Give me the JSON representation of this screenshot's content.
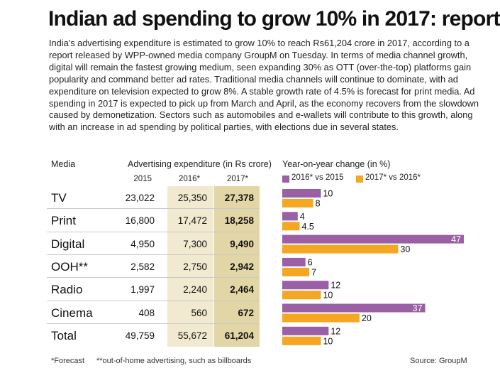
{
  "title": "Indian ad spending to grow 10% in 2017: report",
  "body": "India's advertising expenditure is estimated to grow 10% to reach Rs61,204 crore in 2017, according to a report released by WPP-owned media company GroupM on Tuesday. In terms of media channel growth, digital will remain the fastest growing medium, seen expanding 30% as OTT (over-the-top) platforms gain popularity and command better ad rates. Traditional media channels will continue to dominate, with ad expenditure on television expected to grow 8%. A stable growth rate of 4.5% is forecast for print media. Ad spending in 2017 is expected to pick up from March and April, as the economy recovers from the slowdown caused by demonetization. Sectors such as automobiles and e-wallets will contribute to this growth, along with an increase in ad spending by political parties, with elections due in several states.",
  "table": {
    "media_header": "Media",
    "spend_header": "Advertising expenditure (in Rs crore)",
    "yoy_header": "Year-on-year change (in %)",
    "years": [
      "2015",
      "2016*",
      "2017*"
    ]
  },
  "colors": {
    "series_2016": "#9b5fa5",
    "series_2017": "#f5a623",
    "col_2016_bg": "#f1ead0",
    "col_2017_bg": "#e2d6a6"
  },
  "chart_data": {
    "type": "bar",
    "orientation": "horizontal",
    "categories": [
      "TV",
      "Print",
      "Digital",
      "OOH**",
      "Radio",
      "Cinema",
      "Total"
    ],
    "series": [
      {
        "name": "2016* vs 2015",
        "values": [
          10,
          4,
          47,
          6,
          12,
          37,
          12
        ]
      },
      {
        "name": "2017* vs 2016*",
        "values": [
          8,
          4.5,
          30,
          7,
          10,
          20,
          10
        ]
      }
    ],
    "value_labels": [
      [
        "10",
        "4",
        "47",
        "6",
        "12",
        "37",
        "12"
      ],
      [
        "8",
        "4.5",
        "30",
        "7",
        "10",
        "20",
        "10"
      ]
    ],
    "spend": {
      "2015": [
        "23,022",
        "16,800",
        "4,950",
        "2,582",
        "1,997",
        "408",
        "49,759"
      ],
      "2016*": [
        "25,350",
        "17,472",
        "7,300",
        "2,750",
        "2,240",
        "560",
        "55,672"
      ],
      "2017*": [
        "27,378",
        "18,258",
        "9,490",
        "2,942",
        "2,464",
        "672",
        "61,204"
      ]
    },
    "xlim": [
      0,
      47
    ],
    "legend_position": "top"
  },
  "footer": {
    "forecast_note": "*Forecast",
    "ooh_note": "**out-of-home advertising, such as billboards",
    "source": "Source: GroupM"
  }
}
